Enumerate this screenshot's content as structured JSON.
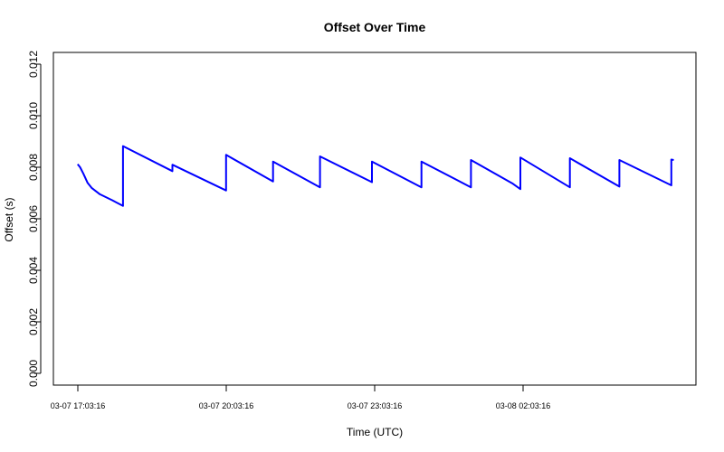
{
  "chart_data": {
    "type": "line",
    "title": "Offset Over Time",
    "xlabel": "Time (UTC)",
    "ylabel": "Offset (s)",
    "ylim": [
      0.0,
      0.012
    ],
    "y_ticks": [
      "0.000",
      "0.002",
      "0.004",
      "0.006",
      "0.008",
      "0.010",
      "0.012"
    ],
    "x_ticks": [
      {
        "t": "03-07 17:03:16",
        "label": "03-07 17:03:16"
      },
      {
        "t": "03-07 20:03:16",
        "label": "03-07 20:03:16"
      },
      {
        "t": "03-07 23:03:16",
        "label": "03-07 23:03:16"
      },
      {
        "t": "03-08 02:03:16",
        "label": "03-08 02:03:16"
      }
    ],
    "xlim": [
      "03-07 16:40",
      "03-08 05:50"
    ],
    "grid": false,
    "legend": "none",
    "series": [
      {
        "color": "#0000ff",
        "points": [
          [
            "03-07 17:03",
            0.00812
          ],
          [
            "03-07 17:06",
            0.008
          ],
          [
            "03-07 17:10",
            0.00775
          ],
          [
            "03-07 17:15",
            0.0074
          ],
          [
            "03-07 17:20",
            0.0072
          ],
          [
            "03-07 17:30",
            0.00695
          ],
          [
            "03-07 17:45",
            0.00672
          ],
          [
            "03-07 17:58",
            0.0065
          ],
          [
            "03-07 17:58",
            0.00882
          ],
          [
            "03-07 18:58",
            0.00785
          ],
          [
            "03-07 18:58",
            0.0081
          ],
          [
            "03-07 20:03",
            0.0071
          ],
          [
            "03-07 20:03",
            0.00848
          ],
          [
            "03-07 21:00",
            0.00745
          ],
          [
            "03-07 21:00",
            0.00822
          ],
          [
            "03-07 21:57",
            0.00722
          ],
          [
            "03-07 21:57",
            0.00842
          ],
          [
            "03-07 23:00",
            0.00742
          ],
          [
            "03-07 23:00",
            0.00822
          ],
          [
            "03-08 00:00",
            0.00722
          ],
          [
            "03-08 00:00",
            0.00822
          ],
          [
            "03-08 01:00",
            0.00722
          ],
          [
            "03-08 01:00",
            0.00828
          ],
          [
            "03-08 01:50",
            0.00738
          ],
          [
            "03-08 02:00",
            0.00715
          ],
          [
            "03-08 02:00",
            0.00838
          ],
          [
            "03-08 03:00",
            0.00722
          ],
          [
            "03-08 03:00",
            0.00835
          ],
          [
            "03-08 04:00",
            0.00725
          ],
          [
            "03-08 04:00",
            0.00828
          ],
          [
            "03-08 05:03",
            0.0073
          ],
          [
            "03-08 05:03",
            0.0083
          ],
          [
            "03-08 05:06",
            0.00828
          ]
        ]
      }
    ]
  }
}
